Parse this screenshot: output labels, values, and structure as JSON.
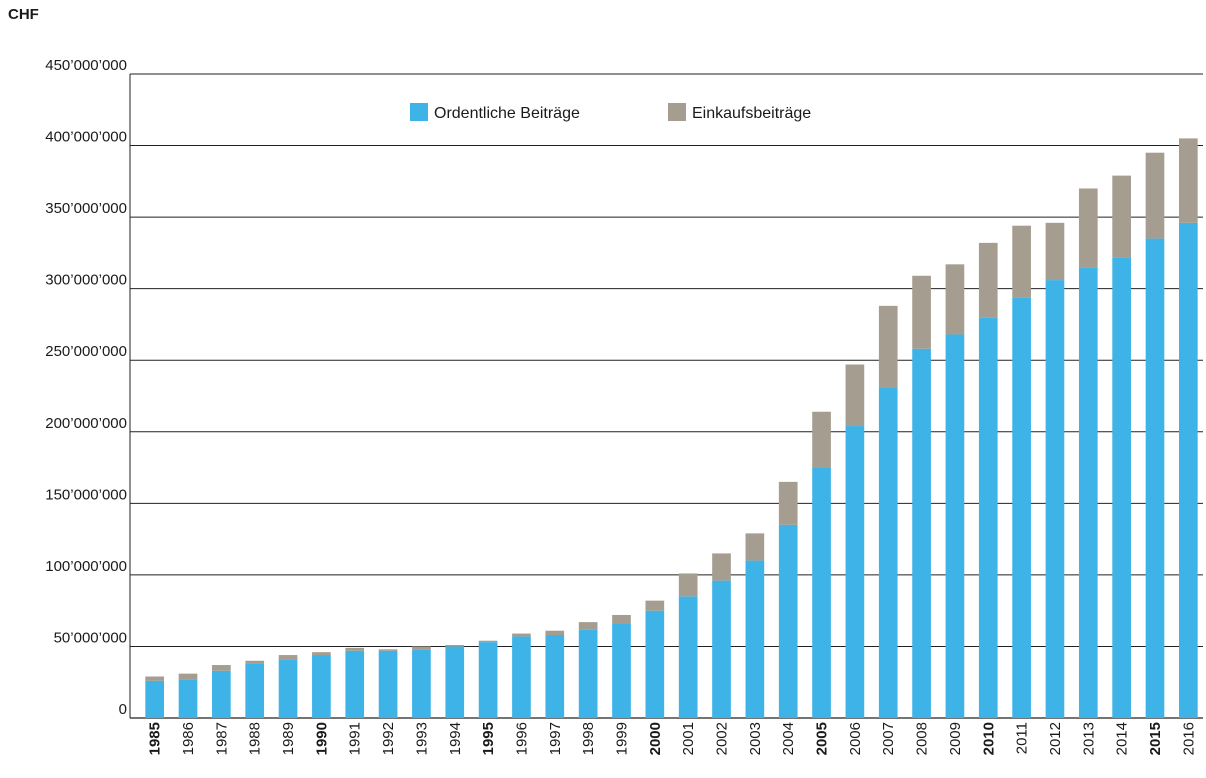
{
  "chart_data": {
    "type": "bar",
    "stacked": true,
    "unit_label": "CHF",
    "title": "",
    "xlabel": "",
    "ylabel": "",
    "ylim": [
      0,
      450000000
    ],
    "yticks": [
      0,
      50000000,
      100000000,
      150000000,
      200000000,
      250000000,
      300000000,
      350000000,
      400000000,
      450000000
    ],
    "ytick_labels": [
      "0",
      "50’000’000",
      "100’000’000",
      "150’000’000",
      "200’000’000",
      "250’000’000",
      "300’000’000",
      "350’000’000",
      "400’000’000",
      "450’000’000"
    ],
    "grid": "horizontal",
    "legend_position": "top",
    "categories": [
      "1985",
      "1986",
      "1987",
      "1988",
      "1989",
      "1990",
      "1991",
      "1992",
      "1993",
      "1994",
      "1995",
      "1996",
      "1997",
      "1998",
      "1999",
      "2000",
      "2001",
      "2002",
      "2003",
      "2004",
      "2005",
      "2006",
      "2007",
      "2008",
      "2009",
      "2010",
      "2011",
      "2012",
      "2013",
      "2014",
      "2015",
      "2016"
    ],
    "bold_categories": [
      "1985",
      "1990",
      "1995",
      "2000",
      "2005",
      "2010",
      "2015"
    ],
    "series": [
      {
        "name": "Ordentliche Beiträge",
        "color": "#3db3e8",
        "values": [
          26000000,
          27000000,
          33000000,
          38000000,
          41000000,
          44000000,
          47000000,
          47000000,
          48000000,
          50000000,
          53000000,
          57000000,
          58000000,
          62000000,
          66000000,
          75000000,
          85000000,
          96000000,
          110000000,
          135000000,
          175000000,
          204000000,
          231000000,
          258000000,
          268000000,
          280000000,
          294000000,
          306000000,
          315000000,
          322000000,
          335000000,
          346000000
        ]
      },
      {
        "name": "Einkaufsbeiträge",
        "color": "#a59d8f",
        "values": [
          3000000,
          4000000,
          4000000,
          2000000,
          3000000,
          2000000,
          2000000,
          1000000,
          2000000,
          1000000,
          1000000,
          2000000,
          3000000,
          5000000,
          6000000,
          7000000,
          16000000,
          19000000,
          19000000,
          30000000,
          39000000,
          43000000,
          57000000,
          51000000,
          49000000,
          52000000,
          50000000,
          40000000,
          55000000,
          57000000,
          60000000,
          59000000
        ]
      }
    ]
  }
}
